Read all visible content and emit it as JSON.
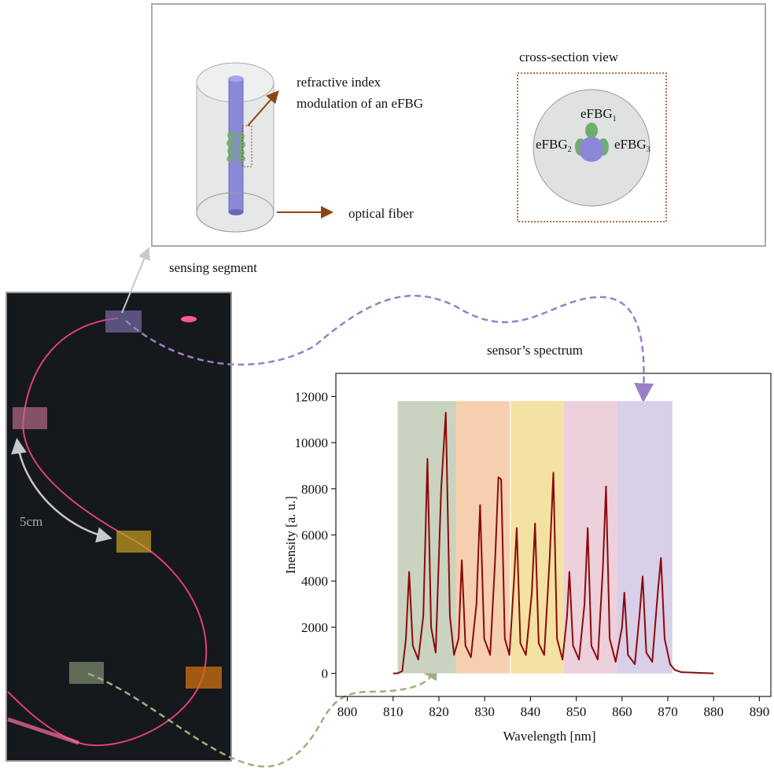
{
  "top_panel": {
    "modulation_line1": "refractive index",
    "modulation_line2": "modulation of an  eFBG",
    "fiber_label": "optical fiber",
    "cross_section_title": "cross-section view",
    "gratings": [
      {
        "label": "eFBG",
        "sub": "1"
      },
      {
        "label": "eFBG",
        "sub": "2"
      },
      {
        "label": "eFBG",
        "sub": "3"
      }
    ]
  },
  "photo_panel": {
    "segment_label": "sensing segment",
    "distance_label": "5cm"
  },
  "chart_data": {
    "type": "line",
    "title": "sensor’s spectrum",
    "x_label": "Wavelength [nm]",
    "y_label": "Inensity [a. u.]",
    "xlim": [
      797.5,
      892.5
    ],
    "xticks": [
      800,
      810,
      820,
      830,
      840,
      850,
      860,
      870,
      880,
      890
    ],
    "ylim": [
      -1000,
      13000
    ],
    "yticks": [
      0,
      2000,
      4000,
      6000,
      8000,
      10000,
      12000
    ],
    "bands": [
      {
        "from": 811,
        "to": 823.7,
        "top": 11800,
        "color": "#c9d3c0"
      },
      {
        "from": 823.7,
        "to": 835.5,
        "top": 11800,
        "color": "#f6cfae"
      },
      {
        "from": 835.7,
        "to": 847.2,
        "top": 11800,
        "color": "#f3e2a2"
      },
      {
        "from": 847.2,
        "to": 859,
        "top": 11800,
        "color": "#ecd0dc"
      },
      {
        "from": 859,
        "to": 871,
        "top": 11800,
        "color": "#d8cfe8"
      }
    ],
    "x": [
      810,
      811,
      812,
      812.8,
      813.5,
      814.3,
      815.5,
      816.6,
      817.5,
      818.3,
      819.3,
      820.5,
      821.5,
      822.4,
      823.3,
      824.3,
      825,
      825.8,
      827,
      828.2,
      829,
      829.9,
      831.2,
      832.3,
      833,
      833.6,
      834.4,
      835.4,
      836.4,
      837,
      837.8,
      839,
      840.3,
      841,
      841.8,
      843,
      844.2,
      845,
      845.8,
      847,
      848,
      848.5,
      849.3,
      850.6,
      851.8,
      852.5,
      853.3,
      854.7,
      855.8,
      856.5,
      857.3,
      858.6,
      860,
      860.5,
      861.3,
      862.8,
      863.8,
      864.5,
      865.3,
      866.6,
      867.8,
      868.5,
      869.3,
      870.5,
      871.5,
      873,
      876,
      880
    ],
    "series": [
      {
        "color": "#8b0a0a",
        "values": [
          0,
          0,
          100,
          1500,
          4400,
          1200,
          600,
          2500,
          9300,
          2000,
          900,
          8000,
          11300,
          2500,
          800,
          1500,
          4900,
          1200,
          700,
          3000,
          7300,
          1500,
          800,
          5000,
          8500,
          8400,
          1500,
          800,
          4000,
          6300,
          1300,
          800,
          3500,
          6500,
          1300,
          800,
          5000,
          8700,
          1500,
          600,
          2500,
          4400,
          1200,
          600,
          3000,
          6300,
          1200,
          600,
          4500,
          8100,
          1500,
          500,
          2000,
          3500,
          800,
          400,
          2500,
          4200,
          900,
          500,
          3500,
          5000,
          1500,
          400,
          150,
          50,
          30,
          0
        ]
      }
    ]
  }
}
